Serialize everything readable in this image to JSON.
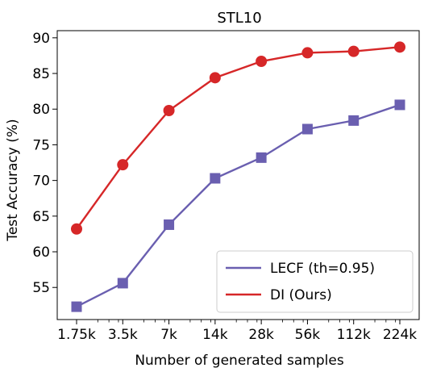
{
  "chart_data": {
    "type": "line",
    "title": "STL10",
    "xlabel": "Number of generated samples",
    "ylabel": "Test Accuracy (%)",
    "x_scale": "log2",
    "categories": [
      "1.75k",
      "3.5k",
      "7k",
      "14k",
      "28k",
      "56k",
      "112k",
      "224k"
    ],
    "yticks": [
      55,
      60,
      65,
      70,
      75,
      80,
      85,
      90
    ],
    "ylim": [
      50.5,
      91
    ],
    "grid": false,
    "legend_position": "bottom-right",
    "series": [
      {
        "name": "LECF (th=0.95)",
        "color": "#6a5fb0",
        "marker": "square",
        "values": [
          52.3,
          55.6,
          63.8,
          70.3,
          73.2,
          77.2,
          78.4,
          80.6
        ]
      },
      {
        "name": "DI (Ours)",
        "color": "#d62728",
        "marker": "circle",
        "values": [
          63.2,
          72.2,
          79.8,
          84.4,
          86.7,
          87.9,
          88.1,
          88.7
        ]
      }
    ]
  }
}
